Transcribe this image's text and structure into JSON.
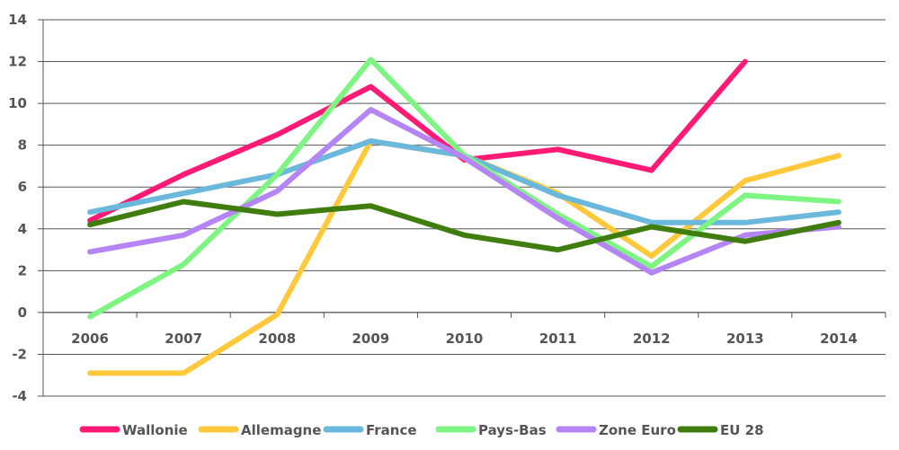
{
  "chart_data": {
    "type": "line",
    "categories": [
      "2006",
      "2007",
      "2008",
      "2009",
      "2010",
      "2011",
      "2012",
      "2013",
      "2014"
    ],
    "ylim": [
      -4,
      14
    ],
    "y_ticks": [
      14,
      12,
      10,
      8,
      6,
      4,
      2,
      0,
      -2,
      -4
    ],
    "grid": true,
    "legend_position": "bottom",
    "series": [
      {
        "name": "Wallonie",
        "color": "#ff1a75",
        "values": [
          4.4,
          6.6,
          8.5,
          10.8,
          7.3,
          7.8,
          6.8,
          12.0,
          null
        ]
      },
      {
        "name": "Allemagne",
        "color": "#ffc93b",
        "values": [
          -2.9,
          -2.9,
          -0.1,
          8.2,
          7.5,
          5.7,
          2.7,
          6.3,
          7.5
        ]
      },
      {
        "name": "France",
        "color": "#6ab8dc",
        "values": [
          4.8,
          5.7,
          6.6,
          8.2,
          7.5,
          5.6,
          4.3,
          4.3,
          4.8
        ]
      },
      {
        "name": "Pays-Bas",
        "color": "#7ef582",
        "values": [
          -0.2,
          2.3,
          6.6,
          12.1,
          7.5,
          4.7,
          2.2,
          5.6,
          5.3
        ]
      },
      {
        "name": "Zone Euro",
        "color": "#b585f5",
        "values": [
          2.9,
          3.7,
          5.8,
          9.7,
          7.4,
          4.5,
          1.9,
          3.7,
          4.1
        ]
      },
      {
        "name": "EU 28",
        "color": "#3f7d0f",
        "values": [
          4.2,
          5.3,
          4.7,
          5.1,
          3.7,
          3.0,
          4.1,
          3.4,
          4.3
        ]
      }
    ]
  }
}
